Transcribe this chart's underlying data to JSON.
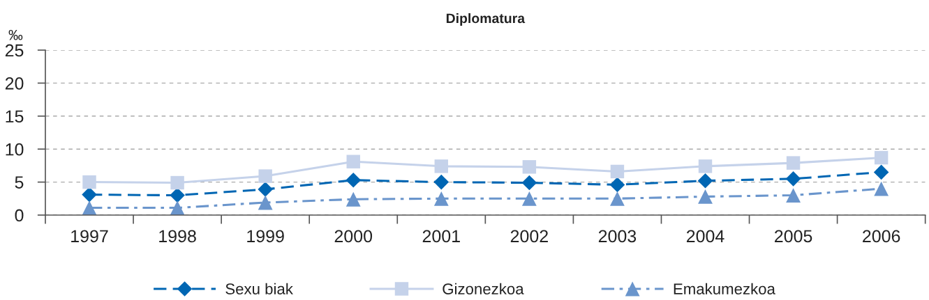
{
  "chart_data": {
    "type": "line",
    "title": "Diplomatura",
    "ylabel": "‰",
    "categories": [
      "1997",
      "1998",
      "1999",
      "2000",
      "2001",
      "2002",
      "2003",
      "2004",
      "2005",
      "2006"
    ],
    "series": [
      {
        "name": "Sexu biak",
        "color": "#0066b3",
        "marker": "diamond",
        "line_style": "dashed",
        "values": [
          3.1,
          3.0,
          3.9,
          5.3,
          5.0,
          4.9,
          4.6,
          5.2,
          5.5,
          6.5
        ]
      },
      {
        "name": "Gizonezkoa",
        "color": "#c5d2ea",
        "marker": "square",
        "line_style": "solid",
        "values": [
          5.0,
          4.9,
          5.9,
          8.1,
          7.4,
          7.3,
          6.6,
          7.4,
          7.9,
          8.7
        ]
      },
      {
        "name": "Emakumezkoa",
        "color": "#6a95cc",
        "marker": "triangle",
        "line_style": "dashdot",
        "values": [
          1.1,
          1.1,
          1.9,
          2.4,
          2.5,
          2.5,
          2.5,
          2.8,
          3.0,
          4.0
        ]
      }
    ],
    "ylim": [
      0,
      25
    ],
    "yticks": [
      0,
      5,
      10,
      15,
      20,
      25
    ],
    "grid": "y",
    "legend": "bottom"
  }
}
